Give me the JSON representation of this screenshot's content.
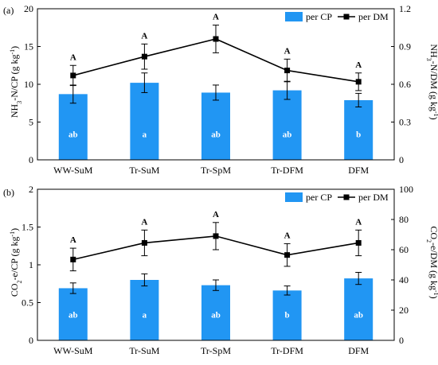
{
  "colors": {
    "bar": "#2196f3",
    "line": "#000000",
    "bar_letter": "#ffffff"
  },
  "chart_data": [
    {
      "type": "bar+line",
      "panel_label": "(a)",
      "categories": [
        "WW-SuM",
        "Tr-SuM",
        "Tr-SpM",
        "Tr-DFM",
        "DFM"
      ],
      "ylabel_left": "NH3-N/CP (g kg-1)",
      "ylabel_right": "NH3-N/DM (g kg-1)",
      "ylim_left": [
        0,
        20
      ],
      "yticks_left": [
        0,
        5,
        10,
        15,
        20
      ],
      "ylim_right": [
        0,
        1.2
      ],
      "yticks_right": [
        "0",
        "0.3",
        "0.6",
        "0.9",
        "1.2"
      ],
      "series": [
        {
          "name": "per CP",
          "kind": "bar",
          "axis": "left",
          "values": [
            8.7,
            10.2,
            8.9,
            9.2,
            7.9
          ],
          "errors": [
            1.2,
            1.3,
            1.0,
            1.2,
            0.9
          ],
          "labels": [
            "ab",
            "a",
            "ab",
            "ab",
            "b"
          ]
        },
        {
          "name": "per DM",
          "kind": "line",
          "axis": "right",
          "values": [
            0.67,
            0.82,
            0.96,
            0.71,
            0.62
          ],
          "errors": [
            0.08,
            0.1,
            0.11,
            0.09,
            0.07
          ],
          "labels": [
            "A",
            "A",
            "A",
            "A",
            "A"
          ]
        }
      ],
      "legend": "top-right"
    },
    {
      "type": "bar+line",
      "panel_label": "(b)",
      "categories": [
        "WW-SuM",
        "Tr-SuM",
        "Tr-SpM",
        "Tr-DFM",
        "DFM"
      ],
      "ylabel_left": "CO2-e/CP (g kg-1)",
      "ylabel_right": "CO2-e/DM (g kg-1)",
      "ylim_left": [
        0,
        2
      ],
      "yticks_left": [
        "0",
        "0.5",
        "1",
        "1.5",
        "2"
      ],
      "ylim_right": [
        0,
        100
      ],
      "yticks_right": [
        "0",
        "20",
        "40",
        "60",
        "80",
        "100"
      ],
      "series": [
        {
          "name": "per CP",
          "kind": "bar",
          "axis": "left",
          "values": [
            0.69,
            0.8,
            0.73,
            0.66,
            0.82
          ],
          "errors": [
            0.07,
            0.08,
            0.07,
            0.06,
            0.08
          ],
          "labels": [
            "ab",
            "a",
            "ab",
            "b",
            "ab"
          ]
        },
        {
          "name": "per DM",
          "kind": "line",
          "axis": "right",
          "values": [
            53.5,
            64.5,
            69,
            56.5,
            64.5
          ],
          "errors": [
            7.5,
            8.5,
            9,
            7.5,
            8.5
          ],
          "labels": [
            "A",
            "A",
            "A",
            "A",
            "A"
          ]
        }
      ],
      "legend": "top-right"
    }
  ]
}
